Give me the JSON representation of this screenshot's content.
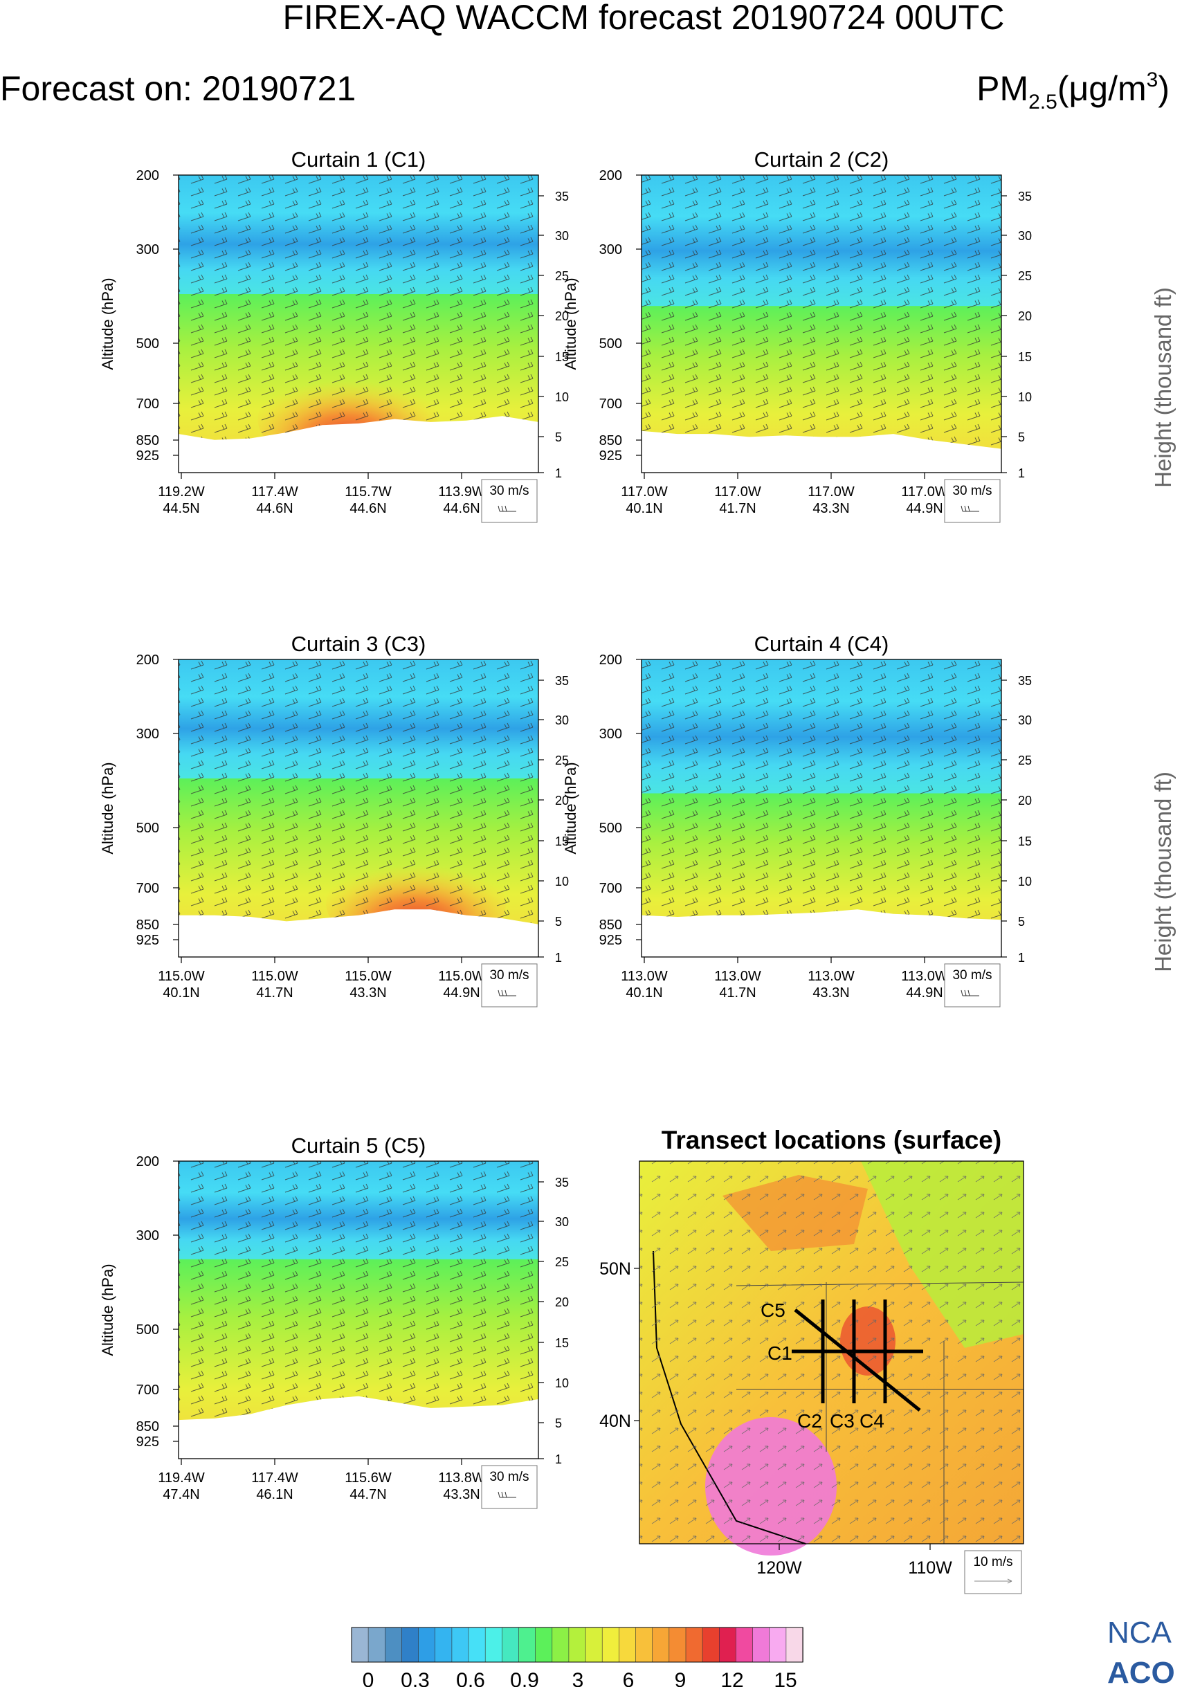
{
  "header": {
    "title": "FIREX-AQ WACCM forecast 20190724 00UTC",
    "forecast_label": "Forecast on: 20190721",
    "quantity_base": "PM",
    "quantity_sub": "2.5",
    "quantity_unit_open": "(μg/m",
    "quantity_unit_sup": "3",
    "quantity_unit_close": ")"
  },
  "axis_labels": {
    "left": "Altitude (hPa)",
    "right": "Height (thousand ft)"
  },
  "pressure_ticks": [
    "200",
    "300",
    "500",
    "700",
    "850",
    "925"
  ],
  "height_ticks": [
    "35",
    "30",
    "25",
    "20",
    "15",
    "10",
    "5",
    "1"
  ],
  "wind_legend": "30 m/s",
  "colors": {
    "scale": [
      "#9ab6d4",
      "#7aa7cc",
      "#4d8fc2",
      "#2f80c8",
      "#2e9ee6",
      "#34b4f0",
      "#3dc8f5",
      "#46e0f7",
      "#4cf0e8",
      "#45e8c0",
      "#4ef08f",
      "#5cf05a",
      "#8cf046",
      "#b4f03c",
      "#d8f03a",
      "#f0ee3c",
      "#f7d93c",
      "#f8c03a",
      "#f7a636",
      "#f48c33",
      "#f06a30",
      "#e8402e",
      "#e02050",
      "#f04aa0",
      "#f07ad8",
      "#f8aaf0",
      "#f8d8e8"
    ]
  },
  "chart_data": [
    {
      "type": "heatmap",
      "title": "Curtain 1 (C1)",
      "xticks": [
        {
          "lon": "119.2W",
          "lat": "44.5N"
        },
        {
          "lon": "117.4W",
          "lat": "44.6N"
        },
        {
          "lon": "115.7W",
          "lat": "44.6N"
        },
        {
          "lon": "113.9W",
          "lat": "44.6N"
        }
      ]
    },
    {
      "type": "heatmap",
      "title": "Curtain 2 (C2)",
      "xticks": [
        {
          "lon": "117.0W",
          "lat": "40.1N"
        },
        {
          "lon": "117.0W",
          "lat": "41.7N"
        },
        {
          "lon": "117.0W",
          "lat": "43.3N"
        },
        {
          "lon": "117.0W",
          "lat": "44.9N"
        }
      ]
    },
    {
      "type": "heatmap",
      "title": "Curtain 3 (C3)",
      "xticks": [
        {
          "lon": "115.0W",
          "lat": "40.1N"
        },
        {
          "lon": "115.0W",
          "lat": "41.7N"
        },
        {
          "lon": "115.0W",
          "lat": "43.3N"
        },
        {
          "lon": "115.0W",
          "lat": "44.9N"
        }
      ]
    },
    {
      "type": "heatmap",
      "title": "Curtain 4 (C4)",
      "xticks": [
        {
          "lon": "113.0W",
          "lat": "40.1N"
        },
        {
          "lon": "113.0W",
          "lat": "41.7N"
        },
        {
          "lon": "113.0W",
          "lat": "43.3N"
        },
        {
          "lon": "113.0W",
          "lat": "44.9N"
        }
      ]
    },
    {
      "type": "heatmap",
      "title": "Curtain 5 (C5)",
      "xticks": [
        {
          "lon": "119.4W",
          "lat": "47.4N"
        },
        {
          "lon": "117.4W",
          "lat": "46.1N"
        },
        {
          "lon": "115.6W",
          "lat": "44.7N"
        },
        {
          "lon": "113.8W",
          "lat": "43.3N"
        }
      ]
    },
    {
      "type": "heatmap",
      "title": "Transect locations (surface)",
      "lat_ticks": [
        "50N",
        "40N"
      ],
      "lon_ticks": [
        "120W",
        "110W"
      ],
      "transect_labels": [
        "C5",
        "C1",
        "C2",
        "C3",
        "C4"
      ],
      "wind_legend": "10 m/s"
    }
  ],
  "colorbar": {
    "labels": [
      "0",
      "0.3",
      "0.6",
      "0.9",
      "3",
      "6",
      "9",
      "12",
      "15"
    ]
  },
  "logo": {
    "line1": "NCA",
    "line2": "ACO"
  }
}
